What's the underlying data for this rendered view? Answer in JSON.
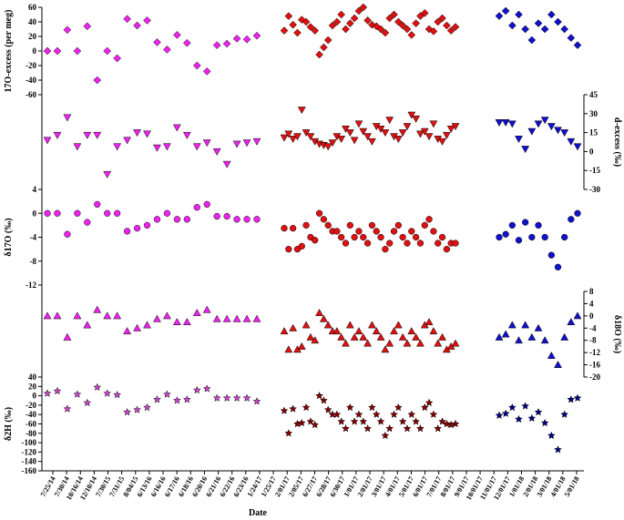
{
  "chart_data": {
    "type": "scatter",
    "x_axis": {
      "title": "Date",
      "tick_labels": [
        "7/25/14",
        "7/30/14",
        "10/16/14",
        "12/10/14",
        "7/30/15",
        "7/31/15",
        "8/04/15",
        "6/13/16",
        "6/16/16",
        "6/17/16",
        "6/18/16",
        "6/20/16",
        "6/21/16",
        "6/22/16",
        "6/23/16",
        "1/24/17",
        "1/25/17",
        "2/01/17",
        "2/05/17",
        "6/27/17",
        "6/28/17",
        "6/30/17",
        "1/01/17",
        "2/01/17",
        "3/01/17",
        "4/01/17",
        "5/01/17",
        "6/01/17",
        "7/01/17",
        "8/01/17",
        "9/01/17",
        "10/01/17",
        "11/01/17",
        "12/01/17",
        "1/01/18",
        "2/01/18",
        "3/01/18",
        "4/01/18",
        "5/01/18"
      ]
    },
    "panels": [
      {
        "id": "o17excess",
        "ylabel": "17O-excess (per meg)",
        "y_side": "left",
        "ylim": [
          -60,
          60
        ],
        "yticks": [
          -60,
          -40,
          -20,
          0,
          20,
          40,
          60
        ],
        "marker": "diamond",
        "series": [
          {
            "segment": "early",
            "color": "#ee22ee",
            "values": [
              0,
              0,
              29,
              0,
              34,
              -40,
              0,
              -10,
              44,
              35,
              42,
              12,
              2,
              22,
              11,
              -20,
              -28,
              8,
              10,
              17,
              16,
              21
            ]
          },
          {
            "segment": "2017",
            "color": "#dd1111",
            "values": [
              28,
              48,
              36,
              25,
              43,
              40,
              33,
              28,
              -5,
              5,
              15,
              35,
              40,
              50,
              30,
              38,
              45,
              55,
              65,
              42,
              36,
              34,
              30,
              25,
              45,
              50,
              40,
              35,
              30,
              22,
              38,
              48,
              52,
              30,
              27,
              40,
              45,
              35,
              28,
              33
            ]
          },
          {
            "segment": "2018",
            "color": "#1111cc",
            "values": [
              48,
              55,
              35,
              50,
              30,
              15,
              38,
              30,
              50,
              40,
              30,
              18,
              8
            ]
          }
        ]
      },
      {
        "id": "dexcess",
        "ylabel": "d-excess (‰)",
        "y_side": "right",
        "ylim": [
          -30,
          45
        ],
        "yticks": [
          -30,
          -15,
          0,
          15,
          30,
          45
        ],
        "marker": "triangle-down",
        "series": [
          {
            "segment": "early",
            "color": "#ee22ee",
            "values": [
              9,
              13,
              27,
              4,
              13,
              13,
              -18,
              4,
              9,
              15,
              14,
              3,
              4,
              19,
              13,
              4,
              7,
              0,
              -10,
              6,
              7,
              8
            ]
          },
          {
            "segment": "2017",
            "color": "#dd1111",
            "values": [
              11,
              14,
              10,
              12,
              33,
              15,
              12,
              8,
              6,
              5,
              4,
              7,
              12,
              10,
              18,
              15,
              9,
              22,
              16,
              12,
              8,
              20,
              18,
              15,
              25,
              12,
              10,
              15,
              20,
              29,
              26,
              14,
              16,
              12,
              22,
              10,
              8,
              13,
              18,
              20
            ]
          },
          {
            "segment": "2018",
            "color": "#1111cc",
            "values": [
              23,
              23,
              22,
              10,
              2,
              16,
              22,
              25,
              20,
              17,
              15,
              8,
              4
            ]
          }
        ]
      },
      {
        "id": "d17o",
        "ylabel": "δ17O (‰)",
        "y_side": "left",
        "ylim": [
          -12,
          4
        ],
        "yticks": [
          -12,
          -8,
          -4,
          0,
          4
        ],
        "marker": "circle",
        "series": [
          {
            "segment": "early",
            "color": "#ee22ee",
            "values": [
              0,
              0,
              -3.5,
              0,
              -1.5,
              1.5,
              0,
              0,
              -3,
              -2.5,
              -2,
              -1,
              0,
              -1,
              -1,
              1,
              1.5,
              -0.5,
              -0.5,
              -1,
              -1,
              -1
            ]
          },
          {
            "segment": "2017",
            "color": "#dd1111",
            "values": [
              -2.5,
              -6,
              -2.5,
              -6,
              -5.5,
              -2,
              -4,
              -4.5,
              0,
              -1,
              -2,
              -3,
              -3,
              -4,
              -5,
              -2,
              -4,
              -3,
              -4,
              -5,
              -2,
              -3,
              -4,
              -6,
              -5,
              -3,
              -2,
              -4,
              -5,
              -3,
              -4,
              -5,
              -2,
              -1,
              -3,
              -5,
              -4,
              -6,
              -5,
              -5
            ]
          },
          {
            "segment": "2018",
            "color": "#1111cc",
            "values": [
              -4,
              -3.5,
              -2,
              -4.5,
              -1.5,
              -4,
              -2,
              -4,
              -7,
              -9,
              -4,
              -1,
              0
            ]
          }
        ]
      },
      {
        "id": "d18o",
        "ylabel": "δ18O (‰)",
        "y_side": "right",
        "ylim": [
          -20,
          8
        ],
        "yticks": [
          -20,
          -16,
          -12,
          -8,
          -4,
          0,
          4,
          8
        ],
        "marker": "triangle-up",
        "series": [
          {
            "segment": "early",
            "color": "#ee22ee",
            "values": [
              0,
              0,
              -7,
              0,
              -3,
              2,
              0,
              0,
              -5,
              -4,
              -3,
              -1,
              0,
              -2,
              -2,
              1,
              2,
              -1,
              -1,
              -1,
              -1,
              -1
            ]
          },
          {
            "segment": "2017",
            "color": "#dd1111",
            "values": [
              -5,
              -11,
              -4,
              -11,
              -10,
              -3,
              -7,
              -8,
              1,
              -1,
              -3,
              -5,
              -5,
              -7,
              -9,
              -3,
              -7,
              -5,
              -7,
              -9,
              -3,
              -5,
              -7,
              -11,
              -9,
              -5,
              -3,
              -7,
              -9,
              -5,
              -7,
              -9,
              -3,
              -2,
              -5,
              -9,
              -7,
              -11,
              -10,
              -9
            ]
          },
          {
            "segment": "2018",
            "color": "#1111cc",
            "values": [
              -7,
              -6,
              -3,
              -8,
              -3,
              -7,
              -4,
              -8,
              -13,
              -16,
              -7,
              -2,
              0
            ]
          }
        ]
      },
      {
        "id": "d2h",
        "ylabel": "δ2H (‰)",
        "y_side": "left",
        "ylim": [
          -160,
          40
        ],
        "yticks": [
          -160,
          -140,
          -120,
          -100,
          -80,
          -60,
          -40,
          -20,
          0,
          20,
          40
        ],
        "marker": "star",
        "series": [
          {
            "segment": "early",
            "color": "#cc44cc",
            "values": [
              5,
              10,
              -28,
              3,
              -15,
              18,
              5,
              2,
              -35,
              -30,
              -25,
              -8,
              3,
              -10,
              -8,
              12,
              15,
              -5,
              -5,
              -5,
              -5,
              -12
            ]
          },
          {
            "segment": "2017",
            "color": "#880000",
            "values": [
              -32,
              -80,
              -28,
              -60,
              -58,
              -25,
              -55,
              -62,
              0,
              -10,
              -30,
              -40,
              -40,
              -55,
              -70,
              -25,
              -55,
              -40,
              -55,
              -70,
              -25,
              -40,
              -55,
              -85,
              -70,
              -40,
              -25,
              -55,
              -70,
              -40,
              -55,
              -70,
              -25,
              -15,
              -40,
              -70,
              -55,
              -60,
              -62,
              -60
            ]
          },
          {
            "segment": "2018",
            "color": "#000088",
            "values": [
              -42,
              -38,
              -25,
              -50,
              -22,
              -48,
              -35,
              -58,
              -85,
              -115,
              -40,
              -8,
              -5
            ]
          }
        ]
      }
    ]
  },
  "panel_labels": {
    "o17excess": "17O-excess (per meg)",
    "dexcess": "d-excess (‰)",
    "d17o": "δ17O (‰)",
    "d18o": "δ18O (‰)",
    "d2h": "δ2H (‰)",
    "xtitle": "Date"
  }
}
